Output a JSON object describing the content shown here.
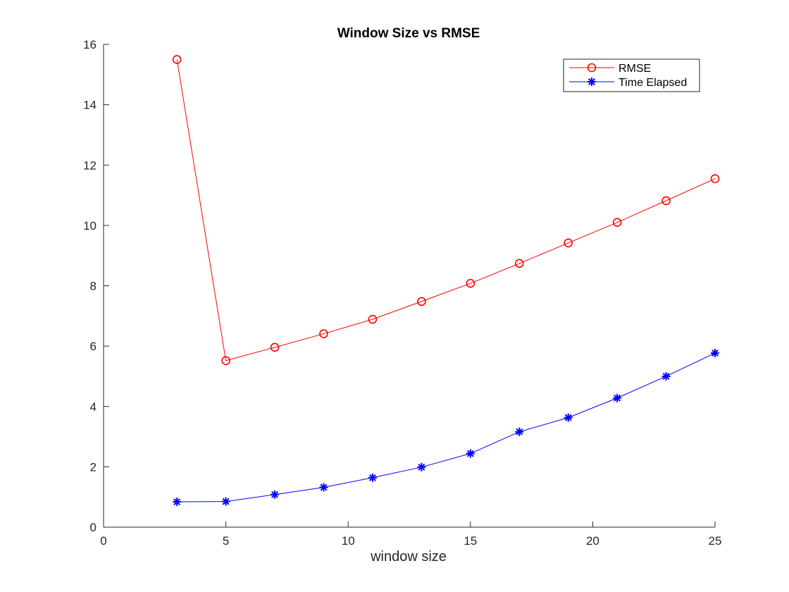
{
  "chart_data": {
    "type": "line",
    "title": "Window Size vs RMSE",
    "xlabel": "window size",
    "ylabel": "",
    "xlim": [
      0,
      25
    ],
    "ylim": [
      0,
      16
    ],
    "xticks": [
      0,
      5,
      10,
      15,
      20,
      25
    ],
    "yticks": [
      0,
      2,
      4,
      6,
      8,
      10,
      12,
      14,
      16
    ],
    "grid": false,
    "legend_position": "top-right",
    "x": [
      3,
      5,
      7,
      9,
      11,
      13,
      15,
      17,
      19,
      21,
      23,
      25
    ],
    "series": [
      {
        "name": "RMSE",
        "color": "#ff0000",
        "marker": "circle",
        "values": [
          15.5,
          5.52,
          5.96,
          6.41,
          6.89,
          7.48,
          8.08,
          8.74,
          9.42,
          10.1,
          10.82,
          11.55
        ]
      },
      {
        "name": "Time Elapsed",
        "color": "#0000ff",
        "marker": "asterisk",
        "values": [
          0.84,
          0.85,
          1.08,
          1.32,
          1.64,
          1.99,
          2.44,
          3.16,
          3.63,
          4.28,
          5.0,
          5.77
        ]
      }
    ]
  }
}
